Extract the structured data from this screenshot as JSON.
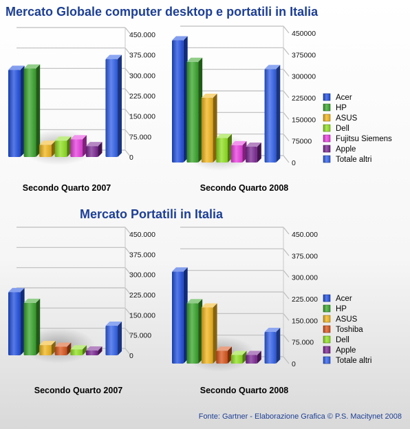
{
  "titles": {
    "main": "Mercato Globale computer desktop e portatili in Italia",
    "portables": "Mercato Portatili in Italia"
  },
  "source": "Fonte: Gartner - Elaborazione Grafica © P.S. Macitynet 2008",
  "colors": {
    "Acer": "#1f4ee0",
    "HP": "#38a62a",
    "ASUS": "#f2b51b",
    "Dell": "#8fe01f",
    "Fujitsu Siemens": "#e83cdf",
    "Apple": "#7a2591",
    "Toshiba": "#d9541a",
    "Totale altri": "#2f5fe8"
  },
  "chart_data": [
    {
      "type": "bar",
      "id": "global-2007",
      "xlabel": "Secondo Quarto 2007",
      "categories": [
        "Acer",
        "HP",
        "ASUS",
        "Dell",
        "Fujitsu Siemens",
        "Apple",
        "Totale altri"
      ],
      "values": [
        320000,
        325000,
        45000,
        60000,
        65000,
        40000,
        360000
      ],
      "ylim": [
        0,
        450000
      ],
      "yticks": [
        "0",
        "75.000",
        "150.000",
        "225.000",
        "300.000",
        "375.000",
        "450.000"
      ],
      "legend": null
    },
    {
      "type": "bar",
      "id": "global-2008",
      "xlabel": "Secondo Quarto 2008",
      "categories": [
        "Acer",
        "HP",
        "ASUS",
        "Dell",
        "Fujitsu Siemens",
        "Apple",
        "Totale altri"
      ],
      "values": [
        425000,
        350000,
        225000,
        85000,
        60000,
        55000,
        325000
      ],
      "ylim": [
        0,
        450000
      ],
      "yticks": [
        "0",
        "75000",
        "150000",
        "225000",
        "300000",
        "375000",
        "450000"
      ],
      "legend": {
        "position": "right",
        "entries": [
          "Acer",
          "HP",
          "ASUS",
          "Dell",
          "Fujitsu Siemens",
          "Apple",
          "Totale altri"
        ]
      }
    },
    {
      "type": "bar",
      "id": "portables-2007",
      "xlabel": "Secondo Quarto 2007",
      "categories": [
        "Acer",
        "HP",
        "ASUS",
        "Toshiba",
        "Dell",
        "Apple",
        "Totale altri"
      ],
      "values": [
        235000,
        195000,
        38000,
        32000,
        22000,
        18000,
        110000
      ],
      "ylim": [
        0,
        450000
      ],
      "yticks": [
        "0",
        "75.000",
        "150.000",
        "225.000",
        "300.000",
        "375.000",
        "450.000"
      ],
      "legend": null
    },
    {
      "type": "bar",
      "id": "portables-2008",
      "xlabel": "Secondo Quarto 2008",
      "categories": [
        "Acer",
        "HP",
        "ASUS",
        "Toshiba",
        "Dell",
        "Apple",
        "Totale altri"
      ],
      "values": [
        320000,
        210000,
        195000,
        45000,
        30000,
        30000,
        110000
      ],
      "ylim": [
        0,
        450000
      ],
      "yticks": [
        "0",
        "75.000",
        "150.000",
        "225.000",
        "300.000",
        "375.000",
        "450.000"
      ],
      "legend": {
        "position": "right",
        "entries": [
          "Acer",
          "HP",
          "ASUS",
          "Toshiba",
          "Dell",
          "Apple",
          "Totale altri"
        ]
      }
    }
  ]
}
